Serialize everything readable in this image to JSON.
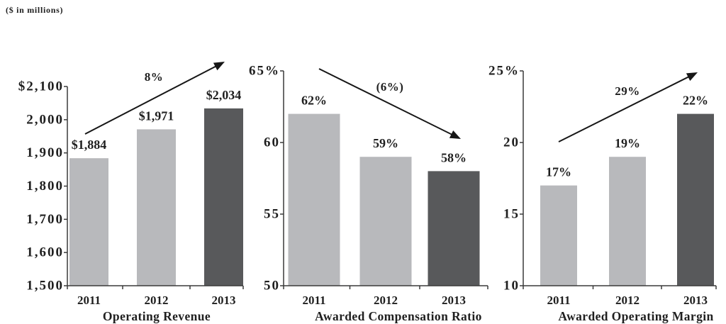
{
  "note": "($ in millions)",
  "chart_data": [
    {
      "type": "bar",
      "title": "Operating Revenue",
      "categories": [
        "2011",
        "2012",
        "2013"
      ],
      "values": [
        1884,
        1971,
        2034
      ],
      "data_labels": [
        "$1,884",
        "$1,971",
        "$2,034"
      ],
      "bar_colors": [
        "#b8b9bc",
        "#b8b9bc",
        "#58595b"
      ],
      "ylim": [
        1500,
        2100
      ],
      "yticks": [
        2100,
        2000,
        1900,
        1800,
        1700,
        1600,
        1500
      ],
      "ytick_labels": [
        "$2,100",
        "2,000",
        "1,900",
        "1,800",
        "1,700",
        "1,600",
        "1,500"
      ],
      "trend": {
        "label": "8%"
      },
      "grid": false
    },
    {
      "type": "bar",
      "title": "Awarded Compensation Ratio",
      "categories": [
        "2011",
        "2012",
        "2013"
      ],
      "values": [
        62,
        59,
        58
      ],
      "data_labels": [
        "62%",
        "59%",
        "58%"
      ],
      "bar_colors": [
        "#b8b9bc",
        "#b8b9bc",
        "#58595b"
      ],
      "ylim": [
        50,
        65
      ],
      "yticks": [
        65,
        60,
        55,
        50
      ],
      "ytick_labels": [
        "65%",
        "60",
        "55",
        "50"
      ],
      "trend": {
        "label": "(6%)"
      },
      "grid": false
    },
    {
      "type": "bar",
      "title": "Awarded Operating Margin",
      "categories": [
        "2011",
        "2012",
        "2013"
      ],
      "values": [
        17,
        19,
        22
      ],
      "data_labels": [
        "17%",
        "19%",
        "22%"
      ],
      "bar_colors": [
        "#b8b9bc",
        "#b8b9bc",
        "#58595b"
      ],
      "ylim": [
        10,
        25
      ],
      "yticks": [
        25,
        20,
        15,
        10
      ],
      "ytick_labels": [
        "25%",
        "20",
        "15",
        "10"
      ],
      "trend": {
        "label": "29%"
      },
      "grid": false
    }
  ]
}
